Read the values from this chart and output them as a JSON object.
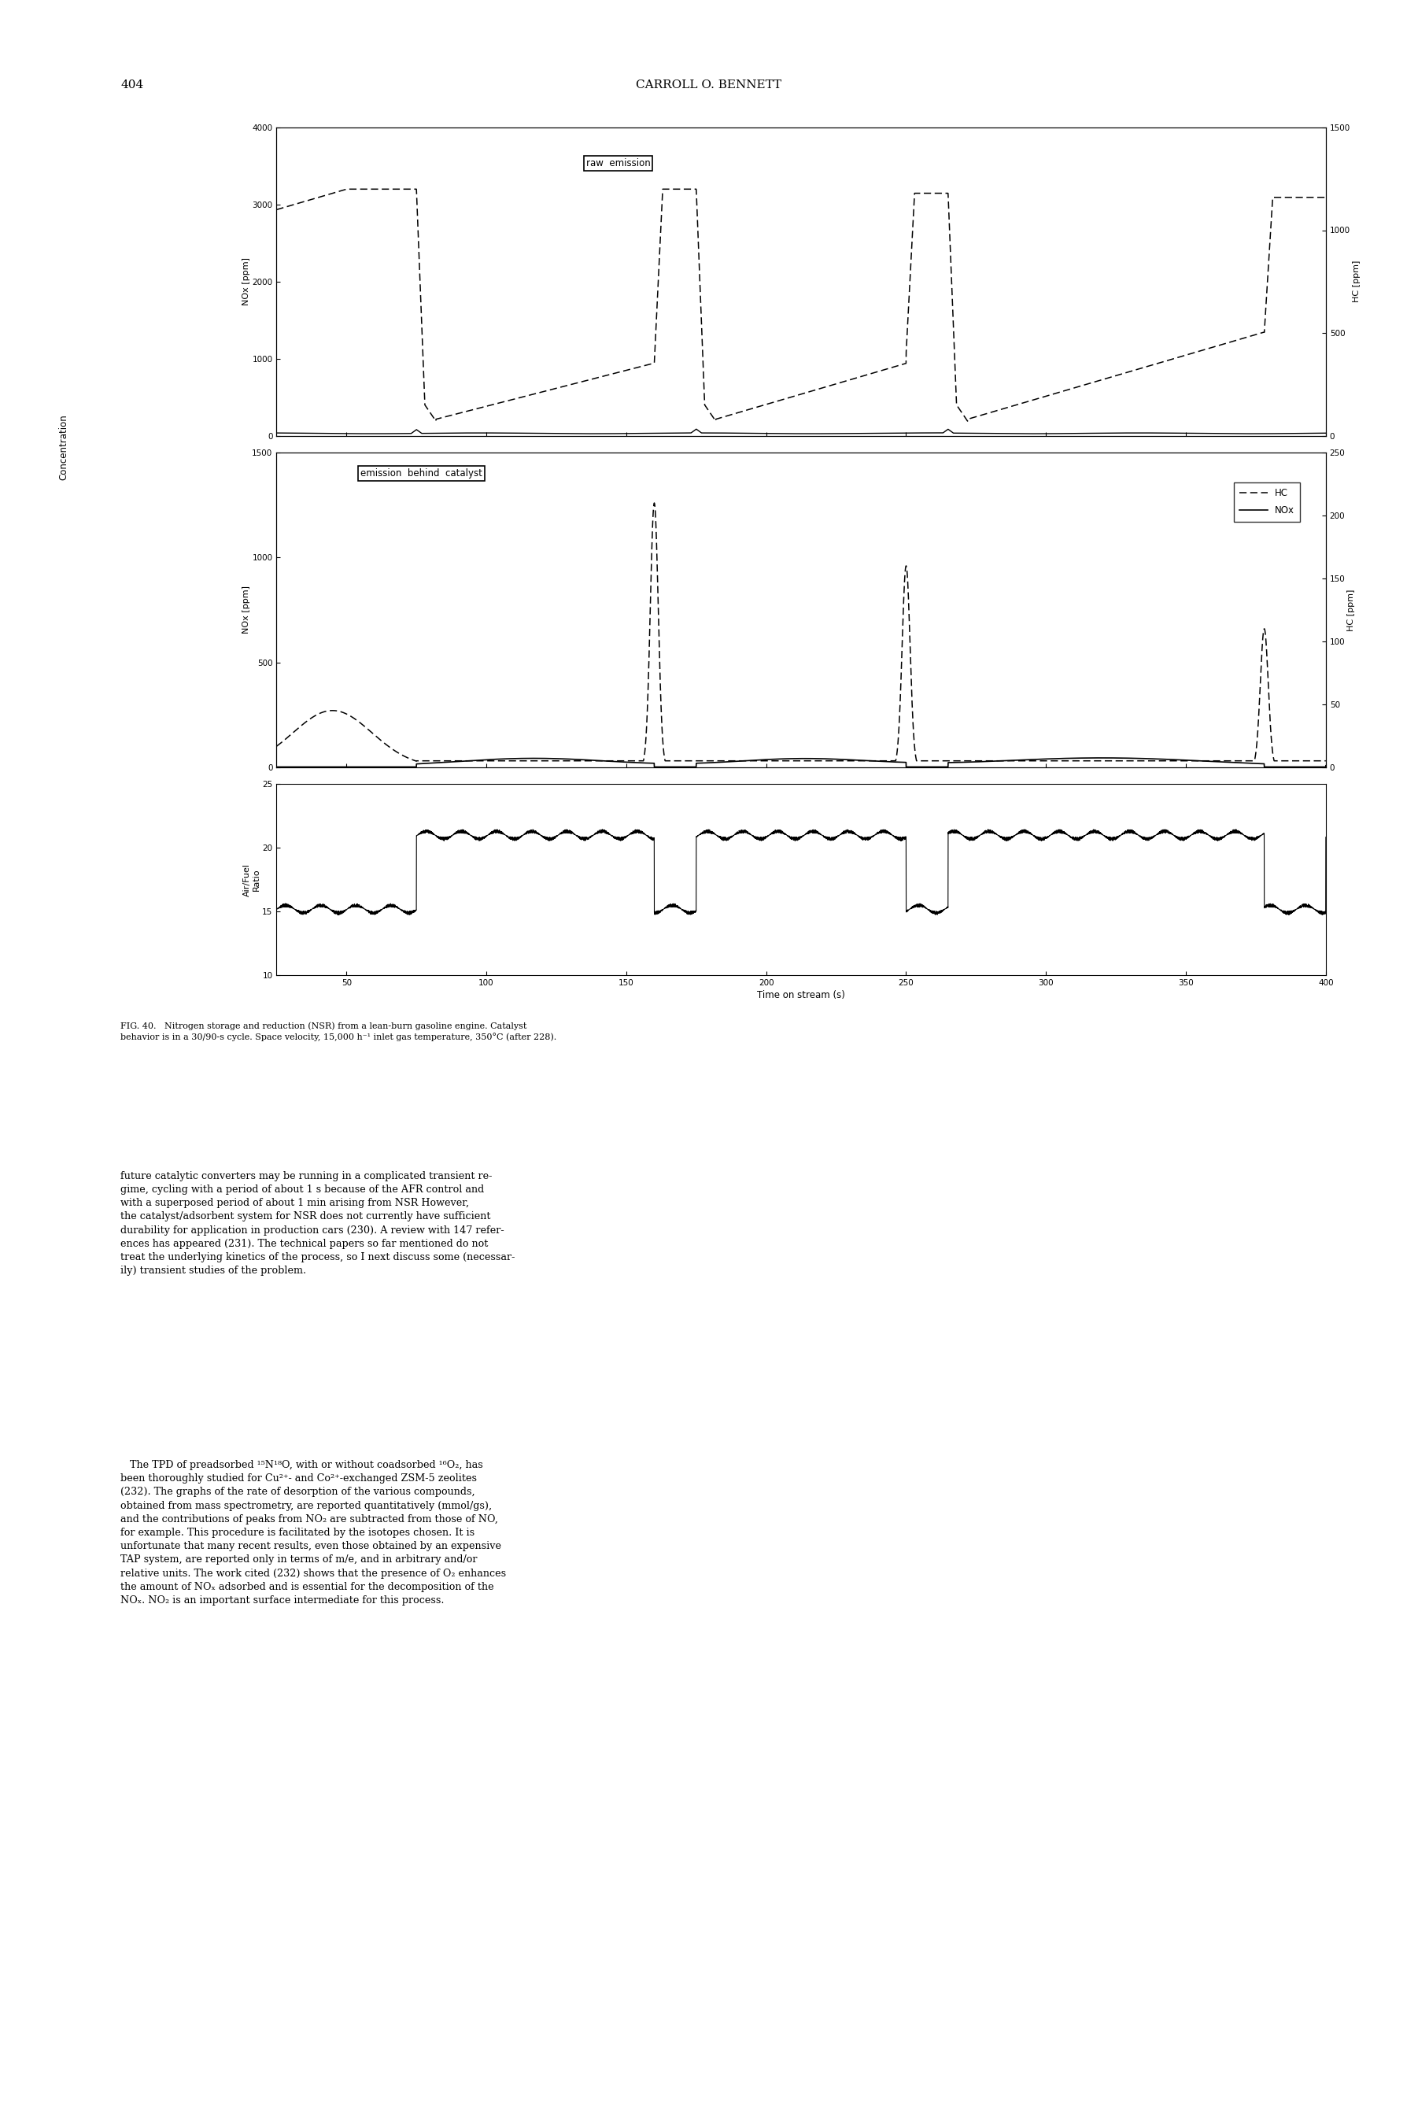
{
  "page_number": "404",
  "header": "CARROLL O. BENNETT",
  "xlabel": "Time on stream (s)",
  "x_min": 25,
  "x_max": 400,
  "x_ticks": [
    50,
    100,
    150,
    200,
    250,
    300,
    350,
    400
  ],
  "subplot1_title": "raw  emission",
  "subplot1_NOx_ylim": [
    0,
    4000
  ],
  "subplot1_NOx_yticks": [
    0,
    1000,
    2000,
    3000,
    4000
  ],
  "subplot1_HC_ylim": [
    0,
    1500
  ],
  "subplot1_HC_yticks": [
    0,
    500,
    1000,
    1500
  ],
  "subplot2_title": "emission  behind  catalyst",
  "subplot2_NOx_ylim": [
    0,
    1500
  ],
  "subplot2_NOx_yticks": [
    0,
    500,
    1000,
    1500
  ],
  "subplot2_HC_ylim": [
    0,
    250
  ],
  "subplot2_HC_yticks": [
    0,
    50,
    100,
    150,
    200,
    250
  ],
  "subplot3_ylim": [
    10,
    25
  ],
  "subplot3_yticks": [
    10,
    15,
    20,
    25
  ],
  "background_color": "#ffffff",
  "fig_caption_line1": "FIG. 40.   Nitrogen storage and reduction (NSR) from a lean-burn gasoline engine. Catalyst",
  "fig_caption_line2": "behavior is in a 30/90-s cycle. Space velocity, 15,000 h⁻¹ inlet gas temperature, 350°C (after 228).",
  "body_text_normal": "future catalytic converters may be running in a complicated transient re-\ngime, cycling with a period of about 1 s because of the AFR control and\nwith a superposed period of about 1 min arising from NSR However,\nthe catalyst/adsorbent system for NSR does not currently have sufficient\ndurability for application in production cars (230). A review with 147 refer-\nences has appeared (231). The technical papers so far mentioned do not\ntreat the underlying kinetics of the process, so I next discuss some (necessar-\nily) transient studies of the problem.",
  "body_text_indent": "   The TPD of preadsorbed ¹⁵N¹⁸O, with or without coadsorbed ¹⁶O₂, has\nbeen thoroughly studied for Cu²⁺- and Co²⁺-exchanged ZSM-5 zeolites\n(232). The graphs of the rate of desorption of the various compounds,\nobtained from mass spectrometry, are reported quantitatively (mmol/gs),\nand the contributions of peaks from NO₂ are subtracted from those of NO,\nfor example. This procedure is facilitated by the isotopes chosen. It is\nunfortunate that many recent results, even those obtained by an expensive\nTAP system, are reported only in terms of m/e, and in arbitrary and/or\nrelative units. The work cited (232) shows that the presence of O₂ enhances\nthe amount of NOₓ adsorbed and is essential for the decomposition of the\nNOₓ. NO₂ is an important surface intermediate for this process."
}
